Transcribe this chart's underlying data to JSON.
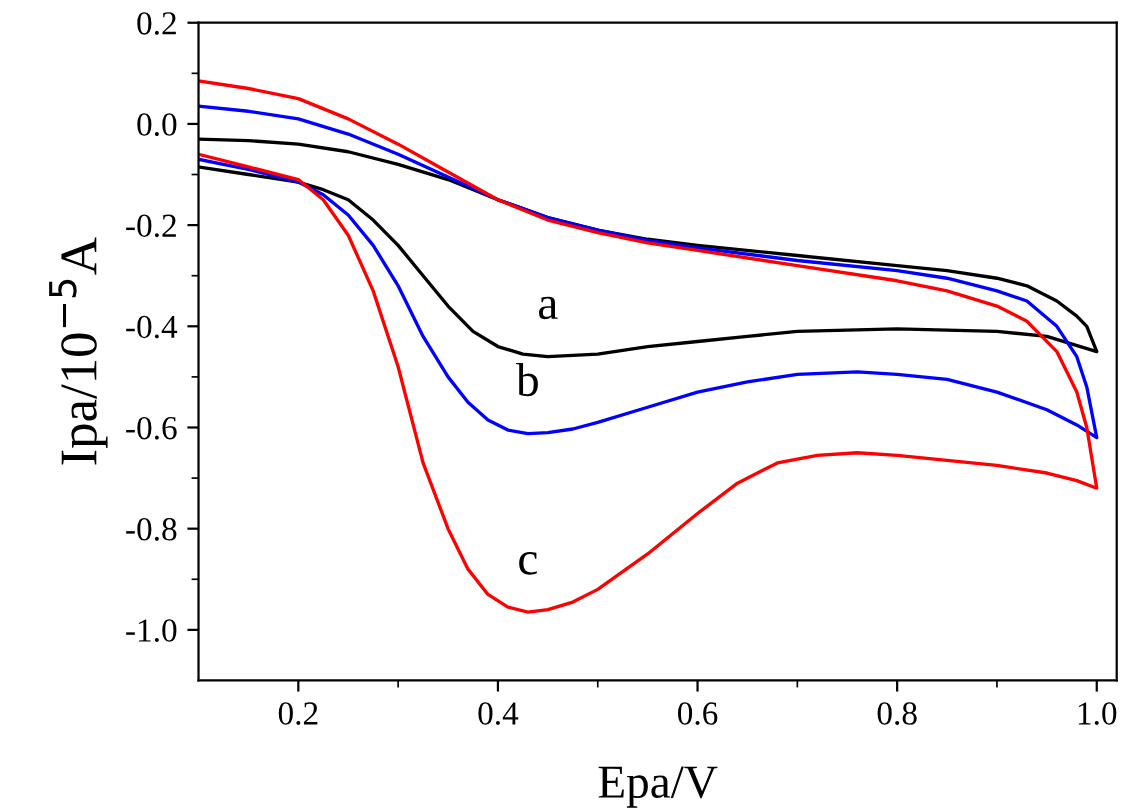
{
  "chart_data": {
    "type": "line",
    "xlabel": "Epa/V",
    "ylabel": "Ipa/10$^{−5}$A",
    "xlim": [
      0.1,
      1.02
    ],
    "ylim": [
      -1.1,
      0.2
    ],
    "xticks": [
      {
        "value": 0.2,
        "label": "0.2"
      },
      {
        "value": 0.4,
        "label": "0.4"
      },
      {
        "value": 0.6,
        "label": "0.6"
      },
      {
        "value": 0.8,
        "label": "0.8"
      },
      {
        "value": 1.0,
        "label": "1.0"
      }
    ],
    "yticks": [
      {
        "value": -1.0,
        "label": "-1.0"
      },
      {
        "value": -0.8,
        "label": "-0.8"
      },
      {
        "value": -0.6,
        "label": "-0.6"
      },
      {
        "value": -0.4,
        "label": "-0.4"
      },
      {
        "value": -0.2,
        "label": "-0.2"
      },
      {
        "value": 0.0,
        "label": "0.0"
      },
      {
        "value": 0.2,
        "label": "0.2"
      }
    ],
    "grid": false,
    "legend": false,
    "marker": "none",
    "line_style": "solid",
    "series": [
      {
        "color": "#000000",
        "x": [
          0.1,
          0.15,
          0.2,
          0.25,
          0.3,
          0.35,
          0.4,
          0.45,
          0.5,
          0.55,
          0.6,
          0.7,
          0.8,
          0.85,
          0.9,
          0.93,
          0.96,
          0.98,
          0.99,
          1.0,
          0.95,
          0.9,
          0.8,
          0.7,
          0.65,
          0.6,
          0.55,
          0.5,
          0.45,
          0.425,
          0.4,
          0.375,
          0.35,
          0.325,
          0.3,
          0.275,
          0.25,
          0.225,
          0.2,
          0.15,
          0.1
        ],
        "values": [
          -0.03,
          -0.033,
          -0.04,
          -0.055,
          -0.08,
          -0.11,
          -0.15,
          -0.185,
          -0.21,
          -0.228,
          -0.24,
          -0.26,
          -0.28,
          -0.29,
          -0.305,
          -0.32,
          -0.35,
          -0.38,
          -0.4,
          -0.45,
          -0.42,
          -0.41,
          -0.405,
          -0.41,
          -0.42,
          -0.43,
          -0.44,
          -0.455,
          -0.46,
          -0.455,
          -0.44,
          -0.41,
          -0.36,
          -0.3,
          -0.24,
          -0.19,
          -0.15,
          -0.13,
          -0.115,
          -0.1,
          -0.085
        ]
      },
      {
        "color": "#0000ff",
        "x": [
          0.1,
          0.15,
          0.2,
          0.25,
          0.3,
          0.35,
          0.4,
          0.45,
          0.5,
          0.55,
          0.6,
          0.7,
          0.8,
          0.85,
          0.9,
          0.93,
          0.96,
          0.98,
          0.99,
          1.0,
          0.98,
          0.95,
          0.9,
          0.85,
          0.8,
          0.76,
          0.7,
          0.65,
          0.6,
          0.55,
          0.5,
          0.475,
          0.45,
          0.43,
          0.41,
          0.39,
          0.37,
          0.35,
          0.325,
          0.3,
          0.275,
          0.25,
          0.225,
          0.2,
          0.15,
          0.1
        ],
        "values": [
          0.035,
          0.025,
          0.01,
          -0.02,
          -0.06,
          -0.105,
          -0.15,
          -0.185,
          -0.21,
          -0.23,
          -0.245,
          -0.27,
          -0.29,
          -0.305,
          -0.33,
          -0.35,
          -0.4,
          -0.46,
          -0.52,
          -0.62,
          -0.595,
          -0.565,
          -0.53,
          -0.505,
          -0.495,
          -0.49,
          -0.495,
          -0.51,
          -0.53,
          -0.56,
          -0.59,
          -0.603,
          -0.61,
          -0.612,
          -0.605,
          -0.585,
          -0.55,
          -0.5,
          -0.42,
          -0.32,
          -0.24,
          -0.18,
          -0.14,
          -0.115,
          -0.09,
          -0.07
        ]
      },
      {
        "color": "#ff0000",
        "x": [
          0.1,
          0.15,
          0.2,
          0.25,
          0.3,
          0.35,
          0.4,
          0.45,
          0.5,
          0.55,
          0.6,
          0.7,
          0.8,
          0.85,
          0.9,
          0.93,
          0.96,
          0.98,
          0.99,
          1.0,
          0.98,
          0.95,
          0.9,
          0.85,
          0.8,
          0.76,
          0.72,
          0.68,
          0.64,
          0.6,
          0.55,
          0.5,
          0.475,
          0.45,
          0.43,
          0.41,
          0.39,
          0.37,
          0.35,
          0.325,
          0.3,
          0.275,
          0.25,
          0.225,
          0.2,
          0.15,
          0.1
        ],
        "values": [
          0.085,
          0.07,
          0.05,
          0.01,
          -0.04,
          -0.095,
          -0.15,
          -0.19,
          -0.215,
          -0.235,
          -0.25,
          -0.28,
          -0.31,
          -0.33,
          -0.36,
          -0.39,
          -0.45,
          -0.53,
          -0.6,
          -0.72,
          -0.705,
          -0.69,
          -0.675,
          -0.665,
          -0.655,
          -0.65,
          -0.655,
          -0.67,
          -0.71,
          -0.77,
          -0.85,
          -0.92,
          -0.945,
          -0.96,
          -0.965,
          -0.955,
          -0.93,
          -0.88,
          -0.8,
          -0.67,
          -0.48,
          -0.33,
          -0.22,
          -0.15,
          -0.11,
          -0.085,
          -0.06
        ]
      }
    ],
    "annotations": [
      "a",
      "b",
      "c"
    ]
  }
}
